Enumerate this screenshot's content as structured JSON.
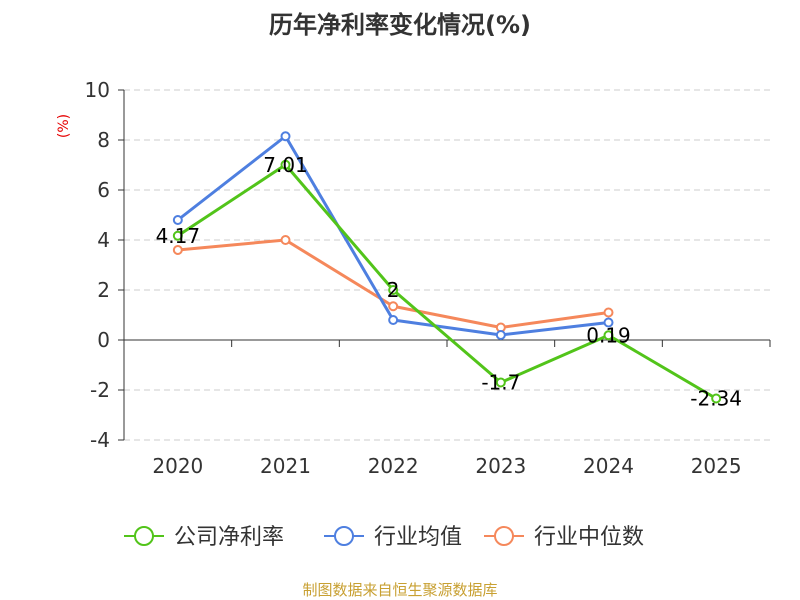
{
  "chart_data": {
    "type": "line",
    "title": "历年净利率变化情况(%)",
    "y_unit": "(%)",
    "categories": [
      "2020",
      "2021",
      "2022",
      "2023",
      "2024",
      "2025"
    ],
    "ylim": [
      -4,
      10
    ],
    "y_ticks": [
      -4,
      -2,
      0,
      2,
      4,
      6,
      8,
      10
    ],
    "y_tick_labels": [
      "-4",
      "-2",
      "0",
      "2",
      "4",
      "6",
      "8",
      "10"
    ],
    "grid": true,
    "legend_position": "bottom",
    "series": [
      {
        "name": "公司净利率",
        "color": "#52c41a",
        "values": [
          4.17,
          7.01,
          2,
          -1.7,
          0.19,
          -2.34
        ],
        "labels": [
          "4.17",
          "7.01",
          "2",
          "-1.7",
          "0.19",
          "-2.34"
        ]
      },
      {
        "name": "行业均值",
        "color": "#4e7fe0",
        "values": [
          4.8,
          8.15,
          0.8,
          0.2,
          0.7,
          null
        ]
      },
      {
        "name": "行业中位数",
        "color": "#f5885b",
        "values": [
          3.6,
          4.0,
          1.35,
          0.5,
          1.1,
          null
        ]
      }
    ]
  },
  "source_text": "制图数据来自恒生聚源数据库"
}
